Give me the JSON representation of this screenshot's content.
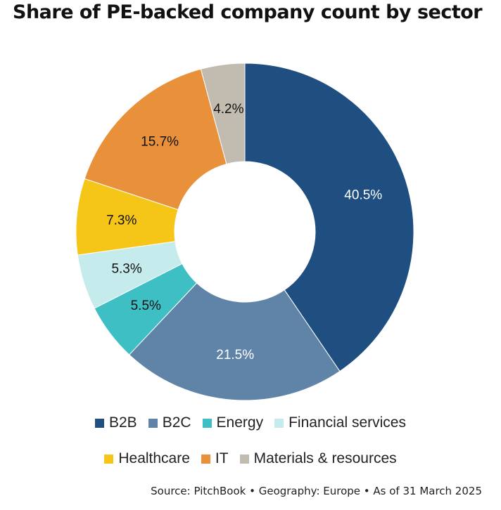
{
  "chart_data": {
    "type": "pie",
    "title": "Share of PE-backed company count by sector",
    "donut": true,
    "categories": [
      "B2B",
      "B2C",
      "Energy",
      "Financial services",
      "Healthcare",
      "IT",
      "Materials & resources"
    ],
    "values": [
      40.5,
      21.5,
      5.5,
      5.3,
      7.3,
      15.7,
      4.2
    ],
    "value_labels": [
      "40.5%",
      "21.5%",
      "5.5%",
      "5.3%",
      "7.3%",
      "15.7%",
      "4.2%"
    ],
    "colors": [
      "#1F4E80",
      "#5F84A8",
      "#3DBFC4",
      "#C5EBEC",
      "#F5C518",
      "#E8903A",
      "#C2BCB0"
    ],
    "label_colors": [
      "#ffffff",
      "#ffffff",
      "#111111",
      "#111111",
      "#111111",
      "#111111",
      "#111111"
    ],
    "legend_placement": "bottom"
  },
  "legend": {
    "row1": [
      "B2B",
      "B2C",
      "Energy",
      "Financial services"
    ],
    "row2": [
      "Healthcare",
      "IT",
      "Materials & resources"
    ]
  },
  "footer": {
    "source": "Source: PitchBook • Geography: Europe • As of 31 March 2025"
  }
}
